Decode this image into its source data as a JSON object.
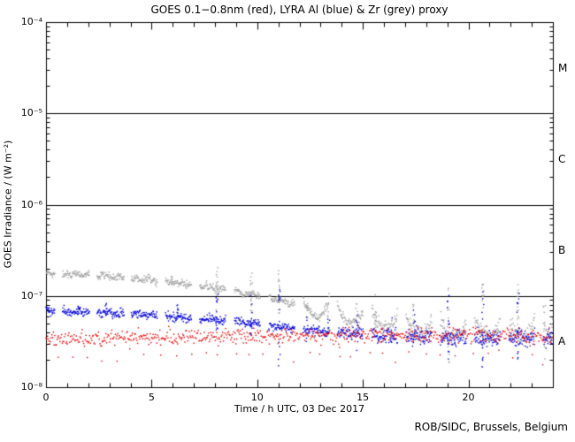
{
  "footer": {
    "credit": "ROB/SIDC, Brussels, Belgium"
  },
  "chart_data": {
    "type": "scatter",
    "title": "GOES 0.1−0.8nm (red), LYRA Al (blue) & Zr (grey) proxy",
    "xlabel": "Time / h UTC, 03 Dec 2017",
    "ylabel": "GOES Irradiance / (W m⁻²)",
    "grid": false,
    "xlim": [
      0,
      24
    ],
    "x_major_ticks": [
      0,
      5,
      10,
      15,
      20
    ],
    "x_major_tick_labels": [
      "0",
      "5",
      "10",
      "15",
      "20"
    ],
    "x_minor_step_h": 1,
    "y_scale": "log",
    "ylim": [
      1e-08,
      0.0001
    ],
    "y_ticks": [
      {
        "label": "10⁻⁴",
        "exp": -4
      },
      {
        "label": "10⁻⁵",
        "exp": -5
      },
      {
        "label": "10⁻⁶",
        "exp": -6
      },
      {
        "label": "10⁻⁷",
        "exp": -7
      },
      {
        "label": "10⁻⁸",
        "exp": -8
      }
    ],
    "hlines_exp": [
      -5,
      -6,
      -7
    ],
    "flare_classes": [
      {
        "label": "M",
        "mid_exp": -4.5
      },
      {
        "label": "C",
        "mid_exp": -5.5
      },
      {
        "label": "B",
        "mid_exp": -6.5
      },
      {
        "label": "A",
        "mid_exp": -7.5
      }
    ],
    "lyra_windows_h": [
      [
        0.0,
        0.42
      ],
      [
        0.78,
        2.06
      ],
      [
        2.42,
        3.7
      ],
      [
        4.04,
        5.28
      ],
      [
        5.66,
        6.9
      ],
      [
        7.28,
        8.52
      ],
      [
        8.93,
        10.14
      ],
      [
        10.55,
        11.78
      ],
      [
        12.18,
        13.4
      ],
      [
        13.8,
        15.02
      ],
      [
        15.43,
        16.65
      ],
      [
        17.05,
        18.27
      ],
      [
        18.68,
        19.9
      ],
      [
        20.3,
        21.52
      ],
      [
        21.93,
        23.15
      ],
      [
        23.55,
        24.0
      ]
    ],
    "trend_hours": [
      0,
      1,
      2,
      3,
      4,
      5,
      6,
      7,
      8,
      9,
      10,
      11,
      12,
      13,
      14,
      15,
      16,
      17,
      18,
      19,
      20,
      21,
      22,
      23,
      24
    ],
    "series": [
      {
        "name": "GOES 0.1-0.8nm",
        "color": "#e60000",
        "style": "continuous",
        "cadence_h": 0.035,
        "noise_log10": 0.04,
        "low_outlier_every_h": 0.7,
        "low_outlier_factor": 0.62,
        "trend_Wm2": [
          3.4e-08,
          3.4e-08,
          3.45e-08,
          3.45e-08,
          3.5e-08,
          3.5e-08,
          3.5e-08,
          3.55e-08,
          3.6e-08,
          3.6e-08,
          3.65e-08,
          3.7e-08,
          3.7e-08,
          3.75e-08,
          3.75e-08,
          3.75e-08,
          3.7e-08,
          3.7e-08,
          3.7e-08,
          3.7e-08,
          3.65e-08,
          3.7e-08,
          3.65e-08,
          3.6e-08,
          3.6e-08
        ],
        "spikes": []
      },
      {
        "name": "LYRA Al proxy",
        "color": "#0000d9",
        "style": "segmented",
        "cadence_h": 0.018,
        "noise_log10": 0.022,
        "noise_grow_after_h": 12,
        "noise_log10_max": 0.045,
        "u_shape_after_h": 99,
        "u_depth_log10": 0,
        "trend_Wm2": [
          6.8e-08,
          6.7e-08,
          6.6e-08,
          6.45e-08,
          6.3e-08,
          6.1e-08,
          5.9e-08,
          5.7e-08,
          5.5e-08,
          5.25e-08,
          4.95e-08,
          4.65e-08,
          4.35e-08,
          4.1e-08,
          3.9e-08,
          3.8e-08,
          3.7e-08,
          3.6e-08,
          3.55e-08,
          3.5e-08,
          3.5e-08,
          3.45e-08,
          3.4e-08,
          3.4e-08,
          3.4e-08
        ],
        "spikes": [
          [
            1.55,
            7e-08,
            8.8e-08,
            6
          ],
          [
            2.85,
            6.6e-08,
            8.4e-08,
            6
          ],
          [
            6.25,
            6.3e-08,
            8.3e-08,
            7
          ],
          [
            8.1,
            4e-08,
            1.12e-07,
            12
          ],
          [
            9.72,
            3.5e-08,
            1.05e-07,
            12
          ],
          [
            11.05,
            1.7e-08,
            1.25e-07,
            14
          ],
          [
            12.35,
            3e-08,
            6.2e-08,
            6
          ],
          [
            13.38,
            2.8e-08,
            6.8e-08,
            7
          ],
          [
            14.72,
            2.5e-08,
            7e-08,
            7
          ],
          [
            16.35,
            3e-08,
            6e-08,
            5
          ],
          [
            17.42,
            2.5e-08,
            7.2e-08,
            8
          ],
          [
            19.05,
            1.8e-08,
            1.28e-07,
            13
          ],
          [
            20.68,
            1.5e-08,
            1.18e-07,
            13
          ],
          [
            22.35,
            1.4e-08,
            1.1e-07,
            13
          ]
        ]
      },
      {
        "name": "LYRA Zr proxy",
        "color": "#a3a3a3",
        "style": "segmented",
        "cadence_h": 0.018,
        "noise_log10": 0.018,
        "noise_grow_after_h": 12,
        "noise_log10_max": 0.05,
        "u_shape_after_h": 11.8,
        "u_depth_log10": 0.16,
        "trend_Wm2": [
          1.8e-07,
          1.76e-07,
          1.7e-07,
          1.63e-07,
          1.56e-07,
          1.49e-07,
          1.42e-07,
          1.33e-07,
          1.23e-07,
          1.12e-07,
          1.01e-07,
          9e-08,
          7.8e-08,
          7e-08,
          6.3e-08,
          5.8e-08,
          5.4e-08,
          5e-08,
          4.7e-08,
          4.5e-08,
          4.4e-08,
          4.35e-08,
          4.3e-08,
          4.25e-08,
          4.2e-08
        ],
        "spikes": [
          [
            5.95,
            1.35e-07,
            1.68e-07,
            7
          ],
          [
            8.1,
            6e-08,
            2.2e-07,
            16
          ],
          [
            9.72,
            5e-08,
            2.1e-07,
            16
          ],
          [
            11.05,
            4.5e-08,
            1.9e-07,
            14
          ],
          [
            12.35,
            5.5e-08,
            9.5e-08,
            8
          ],
          [
            13.38,
            4e-08,
            1.2e-07,
            10
          ],
          [
            14.72,
            3.5e-08,
            8.5e-08,
            8
          ],
          [
            15.6,
            3.5e-08,
            1.05e-07,
            9
          ],
          [
            17.42,
            2.8e-08,
            9.5e-08,
            10
          ],
          [
            19.05,
            1.8e-08,
            1.5e-07,
            16
          ],
          [
            20.68,
            1.6e-08,
            1.55e-07,
            16
          ],
          [
            22.35,
            1.5e-08,
            1.35e-07,
            16
          ],
          [
            23.6,
            2e-08,
            8e-08,
            7
          ]
        ]
      }
    ]
  }
}
